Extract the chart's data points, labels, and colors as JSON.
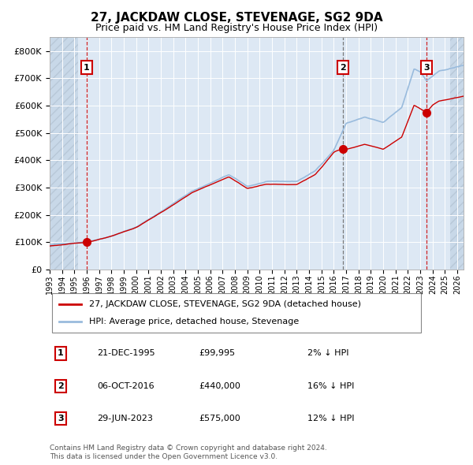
{
  "title": "27, JACKDAW CLOSE, STEVENAGE, SG2 9DA",
  "subtitle": "Price paid vs. HM Land Registry's House Price Index (HPI)",
  "sale_label": "27, JACKDAW CLOSE, STEVENAGE, SG2 9DA (detached house)",
  "hpi_label": "HPI: Average price, detached house, Stevenage",
  "footer1": "Contains HM Land Registry data © Crown copyright and database right 2024.",
  "footer2": "This data is licensed under the Open Government Licence v3.0.",
  "sale_color": "#cc0000",
  "hpi_color": "#99bbdd",
  "background_plot": "#dde8f4",
  "grid_color": "#ffffff",
  "sale_points": [
    {
      "date_num": 1995.97,
      "price": 99995,
      "label": "1",
      "date_str": "21-DEC-1995",
      "price_str": "£99,995",
      "hpi_str": "2% ↓ HPI"
    },
    {
      "date_num": 2016.76,
      "price": 440000,
      "label": "2",
      "date_str": "06-OCT-2016",
      "price_str": "£440,000",
      "hpi_str": "16% ↓ HPI"
    },
    {
      "date_num": 2023.49,
      "price": 575000,
      "label": "3",
      "date_str": "29-JUN-2023",
      "price_str": "£575,000",
      "hpi_str": "12% ↓ HPI"
    }
  ],
  "vline_colors": [
    "#cc0000",
    "#666666",
    "#cc0000"
  ],
  "ylim": [
    0,
    850000
  ],
  "xlim": [
    1993.0,
    2026.5
  ],
  "yticks": [
    0,
    100000,
    200000,
    300000,
    400000,
    500000,
    600000,
    700000,
    800000
  ],
  "ytick_labels": [
    "£0",
    "£100K",
    "£200K",
    "£300K",
    "£400K",
    "£500K",
    "£600K",
    "£700K",
    "£800K"
  ],
  "xtick_years": [
    1993,
    1994,
    1995,
    1996,
    1997,
    1998,
    1999,
    2000,
    2001,
    2002,
    2003,
    2004,
    2005,
    2006,
    2007,
    2008,
    2009,
    2010,
    2011,
    2012,
    2013,
    2014,
    2015,
    2016,
    2017,
    2018,
    2019,
    2020,
    2021,
    2022,
    2023,
    2024,
    2025,
    2026
  ],
  "hatch_left_end": 1995.3,
  "hatch_right_start": 2025.4
}
